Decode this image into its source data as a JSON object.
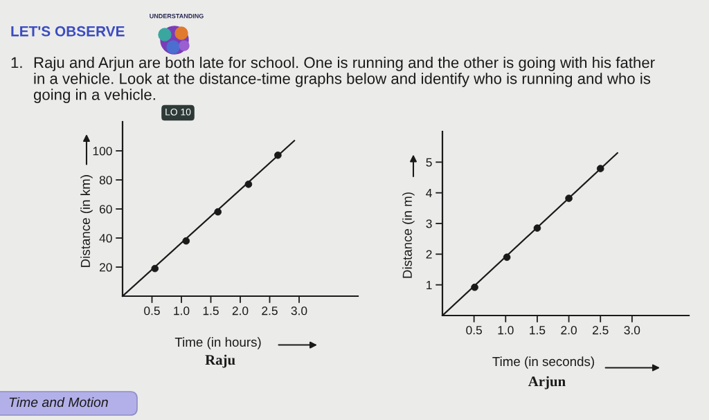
{
  "chart_data": [
    {
      "type": "other",
      "title": "LET'S OBSERVE",
      "annotations": [
        "UNDERSTANDING",
        "1.",
        "Raju and Arjun are both late for school. One is running and the other is going with his father in a vehicle. Look at the distance-time graphs below and identify who is running and who is going in a vehicle.",
        "LO 10",
        "Time and Motion"
      ]
    },
    {
      "type": "line",
      "title": "Raju",
      "xlabel": "Time (in hours)",
      "ylabel": "Distance (in km)",
      "xlim": [
        0,
        4
      ],
      "ylim": [
        0,
        120
      ],
      "xticks": [
        0.5,
        {
          "value": 1,
          "label": "1.0"
        },
        1.5,
        {
          "value": 2,
          "label": "2.0"
        },
        2.5,
        {
          "value": 3,
          "label": "3.0"
        }
      ],
      "yticks": [
        20,
        40,
        60,
        80,
        100
      ],
      "series": [
        {
          "type": "line",
          "color": "#1a1a1a",
          "marker": "none",
          "x": [
            0,
            2.92
          ],
          "values": [
            0,
            107
          ]
        },
        {
          "type": "scatter",
          "color": "#1a1a1a",
          "marker": "circle",
          "x": [
            0.55,
            1.08,
            1.62,
            2.14,
            2.64
          ],
          "values": [
            19,
            38,
            58,
            77,
            97
          ]
        }
      ]
    },
    {
      "type": "line",
      "title": "Arjun",
      "xlabel": "Time (in seconds)",
      "ylabel": "Distance (in m)",
      "xlim": [
        0,
        3.9
      ],
      "ylim": [
        0,
        6
      ],
      "xticks": [
        0.5,
        {
          "value": 1,
          "label": "1.0"
        },
        1.5,
        {
          "value": 2,
          "label": "2.0"
        },
        2.5,
        {
          "value": 3,
          "label": "3.0"
        }
      ],
      "yticks": [
        1,
        2,
        3,
        4,
        5
      ],
      "series": [
        {
          "type": "line",
          "color": "#1a1a1a",
          "marker": "none",
          "x": [
            0,
            2.77
          ],
          "values": [
            0,
            5.3
          ]
        },
        {
          "type": "scatter",
          "color": "#1a1a1a",
          "marker": "circle",
          "x": [
            0.51,
            1.02,
            1.5,
            2.0,
            2.5
          ],
          "values": [
            0.92,
            1.9,
            2.85,
            3.82,
            4.79
          ]
        }
      ]
    }
  ]
}
